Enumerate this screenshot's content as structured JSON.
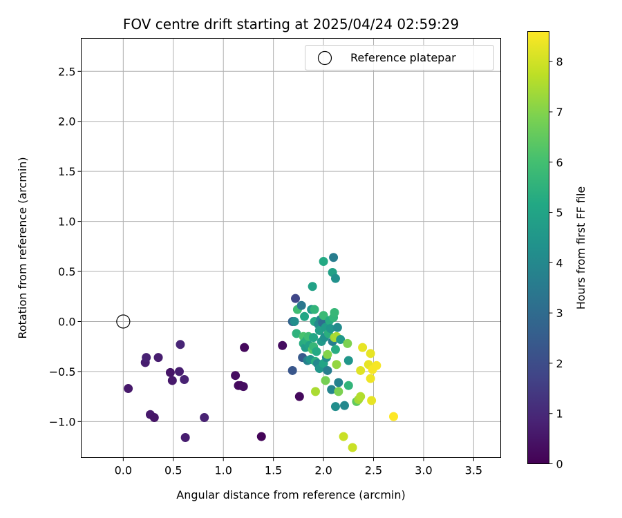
{
  "chart_data": {
    "type": "scatter",
    "title": "FOV centre drift starting at 2025/04/24 02:59:29",
    "xlabel": "Angular distance from reference (arcmin)",
    "ylabel": "Rotation from reference (arcmin)",
    "colorbar_label": "Hours from first FF file",
    "xlim": [
      -0.42,
      3.77
    ],
    "ylim": [
      -1.36,
      2.83
    ],
    "clim": [
      0,
      8.6
    ],
    "x_ticks": [
      "0.0",
      "0.5",
      "1.0",
      "1.5",
      "2.0",
      "2.5",
      "3.0",
      "3.5"
    ],
    "y_ticks": [
      "−1.0",
      "−0.5",
      "0.0",
      "0.5",
      "1.0",
      "1.5",
      "2.0",
      "2.5"
    ],
    "colorbar_ticks": [
      "0",
      "1",
      "2",
      "3",
      "4",
      "5",
      "6",
      "7",
      "8"
    ],
    "grid": true,
    "legend_position": "top-right",
    "colormap": "viridis",
    "reference": {
      "label": "Reference platepar",
      "x": 0.0,
      "y": 0.0
    },
    "points": [
      {
        "x": 0.05,
        "y": -0.67,
        "c": 0.6
      },
      {
        "x": 0.22,
        "y": -0.41,
        "c": 0.7
      },
      {
        "x": 0.23,
        "y": -0.36,
        "c": 0.8
      },
      {
        "x": 0.27,
        "y": -0.93,
        "c": 0.6
      },
      {
        "x": 0.31,
        "y": -0.96,
        "c": 0.5
      },
      {
        "x": 0.35,
        "y": -0.36,
        "c": 0.7
      },
      {
        "x": 0.47,
        "y": -0.51,
        "c": 0.5
      },
      {
        "x": 0.49,
        "y": -0.59,
        "c": 0.6
      },
      {
        "x": 0.56,
        "y": -0.5,
        "c": 0.7
      },
      {
        "x": 0.57,
        "y": -0.23,
        "c": 0.9
      },
      {
        "x": 0.61,
        "y": -0.58,
        "c": 0.8
      },
      {
        "x": 0.62,
        "y": -1.16,
        "c": 0.7
      },
      {
        "x": 0.81,
        "y": -0.96,
        "c": 0.8
      },
      {
        "x": 1.12,
        "y": -0.54,
        "c": 0.3
      },
      {
        "x": 1.15,
        "y": -0.64,
        "c": 0.3
      },
      {
        "x": 1.17,
        "y": -0.64,
        "c": 0.2
      },
      {
        "x": 1.2,
        "y": -0.65,
        "c": 0.3
      },
      {
        "x": 1.21,
        "y": -0.26,
        "c": 0.2
      },
      {
        "x": 1.38,
        "y": -1.15,
        "c": 0.1
      },
      {
        "x": 1.59,
        "y": -0.24,
        "c": 0.3
      },
      {
        "x": 1.69,
        "y": 0.0,
        "c": 2.7
      },
      {
        "x": 1.69,
        "y": -0.49,
        "c": 2.3
      },
      {
        "x": 1.71,
        "y": 0.0,
        "c": 4.2
      },
      {
        "x": 1.72,
        "y": 0.23,
        "c": 1.8
      },
      {
        "x": 1.73,
        "y": -0.12,
        "c": 5.5
      },
      {
        "x": 1.74,
        "y": 0.12,
        "c": 5.9
      },
      {
        "x": 1.76,
        "y": -0.75,
        "c": 0.2
      },
      {
        "x": 1.78,
        "y": 0.16,
        "c": 3.4
      },
      {
        "x": 1.79,
        "y": -0.36,
        "c": 2.4
      },
      {
        "x": 1.8,
        "y": -0.15,
        "c": 6.1
      },
      {
        "x": 1.8,
        "y": -0.22,
        "c": 5.3
      },
      {
        "x": 1.81,
        "y": 0.05,
        "c": 5.1
      },
      {
        "x": 1.82,
        "y": -0.26,
        "c": 4.7
      },
      {
        "x": 1.83,
        "y": -0.19,
        "c": 5.4
      },
      {
        "x": 1.84,
        "y": -0.39,
        "c": 3.8
      },
      {
        "x": 1.85,
        "y": -0.15,
        "c": 5.9
      },
      {
        "x": 1.86,
        "y": -0.24,
        "c": 4.9
      },
      {
        "x": 1.87,
        "y": -0.38,
        "c": 4.4
      },
      {
        "x": 1.88,
        "y": 0.12,
        "c": 4.6
      },
      {
        "x": 1.89,
        "y": 0.35,
        "c": 4.9
      },
      {
        "x": 1.89,
        "y": -0.28,
        "c": 6.3
      },
      {
        "x": 1.9,
        "y": -0.16,
        "c": 5.1
      },
      {
        "x": 1.9,
        "y": -0.25,
        "c": 5.7
      },
      {
        "x": 1.91,
        "y": 0.0,
        "c": 5.2
      },
      {
        "x": 1.91,
        "y": 0.12,
        "c": 5.6
      },
      {
        "x": 1.92,
        "y": -0.7,
        "c": 7.5
      },
      {
        "x": 1.92,
        "y": -0.4,
        "c": 5.4
      },
      {
        "x": 1.93,
        "y": -0.3,
        "c": 5.2
      },
      {
        "x": 1.94,
        "y": -0.42,
        "c": 4.0
      },
      {
        "x": 1.95,
        "y": -0.03,
        "c": 4.1
      },
      {
        "x": 1.96,
        "y": -0.47,
        "c": 4.5
      },
      {
        "x": 1.96,
        "y": -0.09,
        "c": 4.8
      },
      {
        "x": 1.97,
        "y": 0.02,
        "c": 3.9
      },
      {
        "x": 1.98,
        "y": -0.2,
        "c": 4.6
      },
      {
        "x": 1.99,
        "y": -0.01,
        "c": 3.1
      },
      {
        "x": 2.0,
        "y": 0.6,
        "c": 5.2
      },
      {
        "x": 2.0,
        "y": 0.06,
        "c": 5.8
      },
      {
        "x": 2.0,
        "y": -0.42,
        "c": 5.0
      },
      {
        "x": 2.01,
        "y": -0.16,
        "c": 4.3
      },
      {
        "x": 2.02,
        "y": -0.59,
        "c": 6.8
      },
      {
        "x": 2.02,
        "y": -0.06,
        "c": 4.7
      },
      {
        "x": 2.03,
        "y": -0.36,
        "c": 4.2
      },
      {
        "x": 2.04,
        "y": -0.49,
        "c": 3.6
      },
      {
        "x": 2.04,
        "y": -0.33,
        "c": 7.0
      },
      {
        "x": 2.05,
        "y": -0.12,
        "c": 5.4
      },
      {
        "x": 2.06,
        "y": 0.01,
        "c": 5.3
      },
      {
        "x": 2.07,
        "y": -0.07,
        "c": 4.5
      },
      {
        "x": 2.08,
        "y": -0.68,
        "c": 3.9
      },
      {
        "x": 2.09,
        "y": -0.2,
        "c": 3.6
      },
      {
        "x": 2.09,
        "y": 0.49,
        "c": 4.9
      },
      {
        "x": 2.1,
        "y": 0.64,
        "c": 3.6
      },
      {
        "x": 2.1,
        "y": 0.04,
        "c": 5.6
      },
      {
        "x": 2.11,
        "y": -0.16,
        "c": 7.4
      },
      {
        "x": 2.11,
        "y": 0.09,
        "c": 5.7
      },
      {
        "x": 2.12,
        "y": -0.28,
        "c": 5.3
      },
      {
        "x": 2.12,
        "y": 0.43,
        "c": 4.3
      },
      {
        "x": 2.12,
        "y": -0.85,
        "c": 4.2
      },
      {
        "x": 2.13,
        "y": -0.43,
        "c": 7.2
      },
      {
        "x": 2.13,
        "y": -0.15,
        "c": 7.5
      },
      {
        "x": 2.14,
        "y": -0.06,
        "c": 4.1
      },
      {
        "x": 2.15,
        "y": -0.61,
        "c": 3.8
      },
      {
        "x": 2.15,
        "y": -0.7,
        "c": 6.9
      },
      {
        "x": 2.17,
        "y": -0.18,
        "c": 4.6
      },
      {
        "x": 2.2,
        "y": -1.15,
        "c": 7.9
      },
      {
        "x": 2.21,
        "y": -0.84,
        "c": 4.0
      },
      {
        "x": 2.24,
        "y": -0.22,
        "c": 6.9
      },
      {
        "x": 2.25,
        "y": -0.39,
        "c": 4.5
      },
      {
        "x": 2.25,
        "y": -0.64,
        "c": 5.6
      },
      {
        "x": 2.29,
        "y": -1.26,
        "c": 7.9
      },
      {
        "x": 2.33,
        "y": -0.8,
        "c": 6.5
      },
      {
        "x": 2.35,
        "y": -0.78,
        "c": 7.4
      },
      {
        "x": 2.37,
        "y": -0.75,
        "c": 7.6
      },
      {
        "x": 2.37,
        "y": -0.49,
        "c": 8.2
      },
      {
        "x": 2.39,
        "y": -0.26,
        "c": 8.3
      },
      {
        "x": 2.45,
        "y": -0.43,
        "c": 8.3
      },
      {
        "x": 2.47,
        "y": -0.32,
        "c": 8.3
      },
      {
        "x": 2.47,
        "y": -0.57,
        "c": 8.4
      },
      {
        "x": 2.48,
        "y": -0.79,
        "c": 8.3
      },
      {
        "x": 2.49,
        "y": -0.48,
        "c": 8.5
      },
      {
        "x": 2.53,
        "y": -0.44,
        "c": 8.5
      },
      {
        "x": 2.7,
        "y": -0.95,
        "c": 8.6
      }
    ]
  }
}
